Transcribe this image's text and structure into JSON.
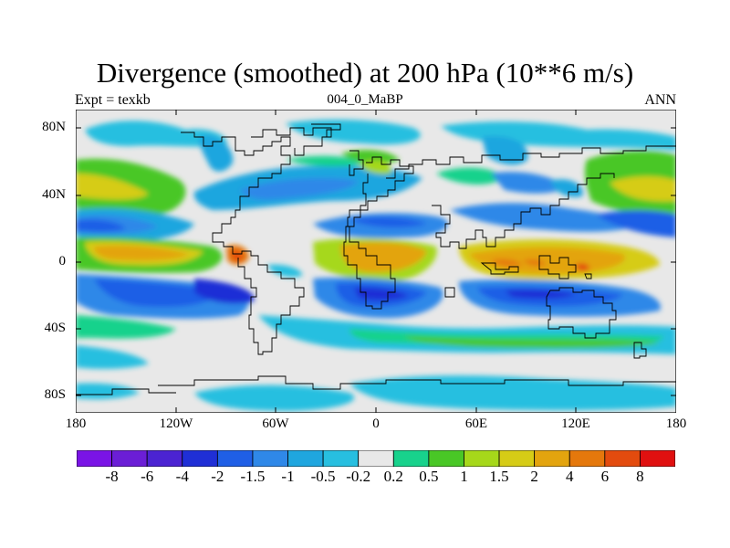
{
  "title": "Divergence (smoothed) at 200 hPa (10**6 m/s)",
  "subtitle_left": "Expt = texkb",
  "subtitle_center": "004_0_MaBP",
  "subtitle_right": "ANN",
  "lat_labels": [
    "80N",
    "40N",
    "0",
    "40S",
    "80S"
  ],
  "lon_labels": [
    "180",
    "120W",
    "60W",
    "0",
    "60E",
    "120E",
    "180"
  ],
  "colorbar": {
    "levels": [
      "-8",
      "-6",
      "-4",
      "-2",
      "-1.5",
      "-1",
      "-0.5",
      "-0.2",
      "0.2",
      "0.5",
      "1",
      "1.5",
      "2",
      "4",
      "6",
      "8"
    ],
    "colors": [
      "#7a14e6",
      "#6b1ed6",
      "#4b23d2",
      "#1f2fd6",
      "#1f5fe6",
      "#2f88e8",
      "#1fa6df",
      "#27bfe0",
      "#e8e8e8",
      "#18d28c",
      "#49c726",
      "#a6d81a",
      "#d6cc16",
      "#e3a40e",
      "#e5780c",
      "#e34b0e",
      "#e01010"
    ]
  },
  "colors": {
    "background": "#ffffff",
    "neutral": "#e8e8e8",
    "coast": "#000000"
  }
}
